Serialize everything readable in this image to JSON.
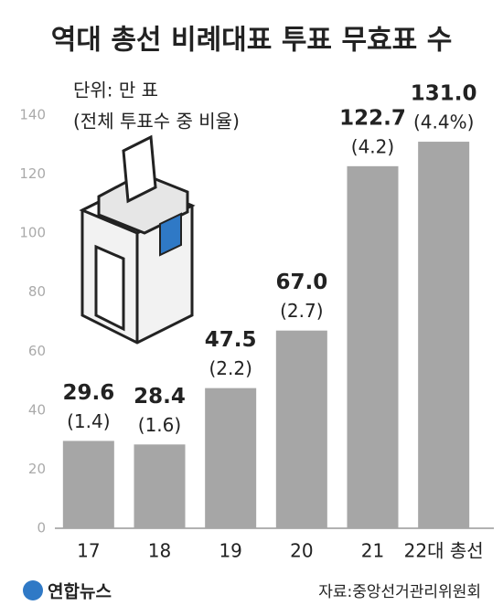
{
  "chart_data": {
    "type": "bar",
    "title": "역대 총선 비례대표 투표 무효표 수",
    "unit": "단위: 만 표",
    "categories": [
      "17",
      "18",
      "19",
      "20",
      "21",
      "22대 총선"
    ],
    "values": [
      29.6,
      28.4,
      47.5,
      67.0,
      122.7,
      131.0
    ],
    "value_labels": [
      "29.6",
      "28.4",
      "47.5",
      "67.0",
      "122.7",
      "131.0"
    ],
    "color": "#a6a6a6",
    "shares": {
      "name": "(전체 투표수 중 비율)",
      "values": [
        1.4,
        1.6,
        2.2,
        2.7,
        4.2,
        4.4
      ],
      "value_labels": [
        "(1.4)",
        "(1.6)",
        "(2.2)",
        "(2.7)",
        "(4.2)",
        "(4.4%)"
      ]
    },
    "ylim": [
      0,
      140
    ],
    "yticks": [
      0,
      20,
      40,
      60,
      80,
      100,
      120,
      140
    ],
    "grid": false,
    "source": "자료:중앙선거관리위원회",
    "logo": "연합뉴스"
  }
}
